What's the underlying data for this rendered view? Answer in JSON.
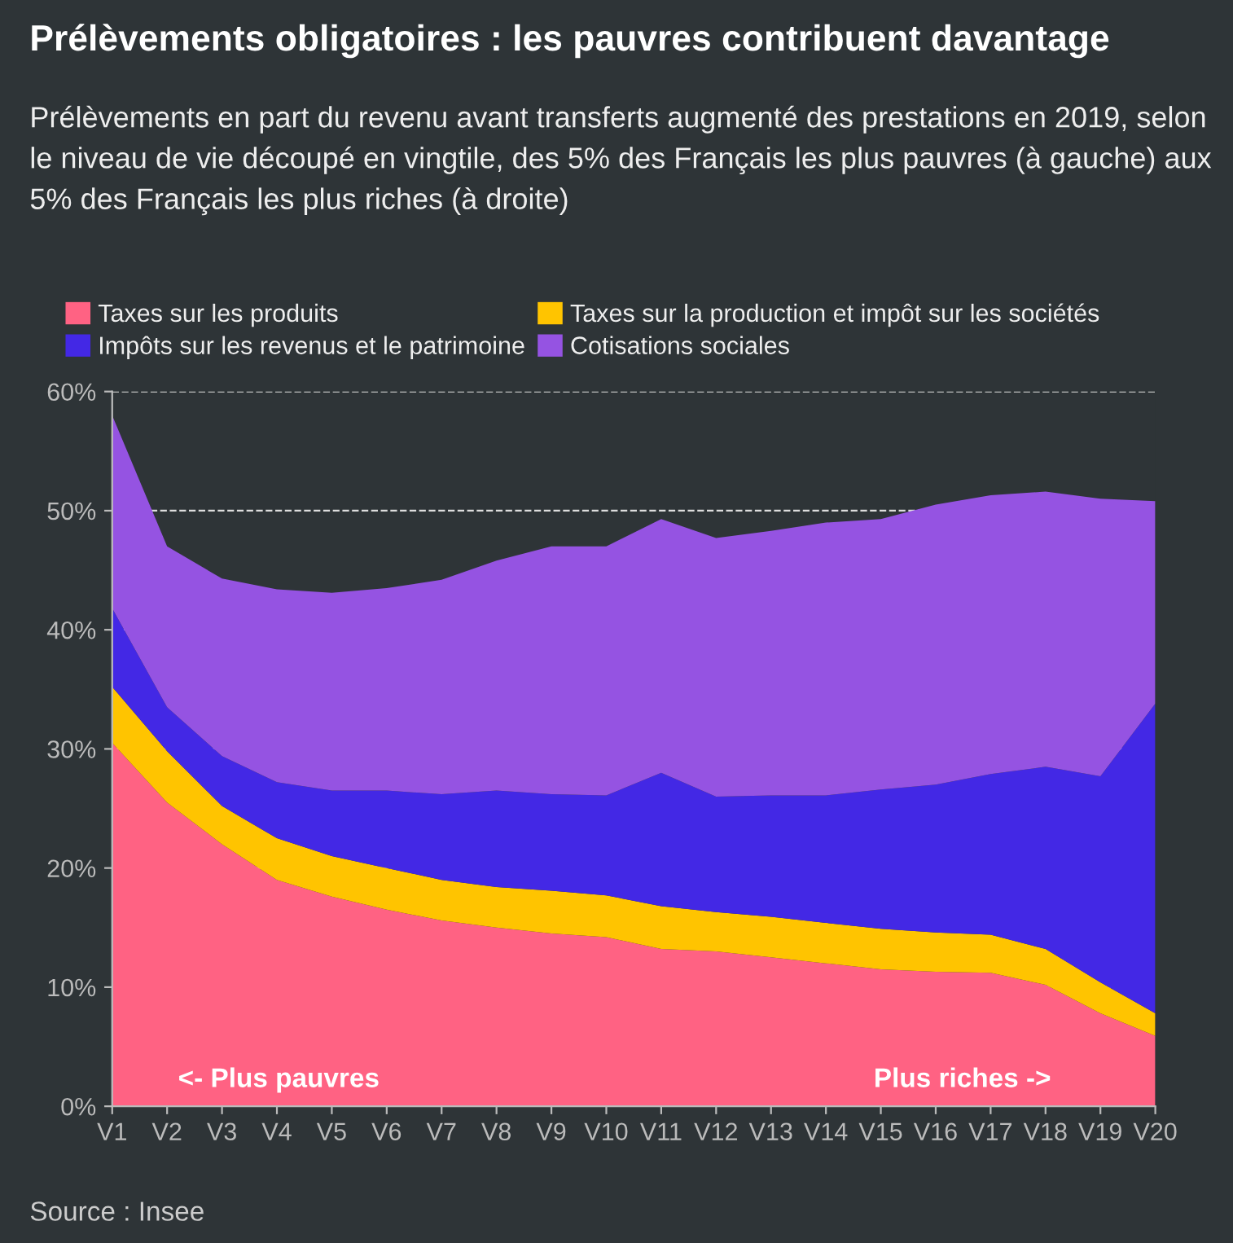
{
  "chart_data": {
    "type": "area",
    "stacked": true,
    "title": "Prélèvements obligatoires : les pauvres contribuent davantage",
    "subtitle": "Prélèvements en part du revenu avant transferts augmenté des prestations en 2019, selon le niveau de vie découpé en vingtile, des 5% des Français les plus pauvres (à gauche) aux 5% des Français les plus riches (à droite)",
    "categories": [
      "V1",
      "V2",
      "V3",
      "V4",
      "V5",
      "V6",
      "V7",
      "V8",
      "V9",
      "V10",
      "V11",
      "V12",
      "V13",
      "V14",
      "V15",
      "V16",
      "V17",
      "V18",
      "V19",
      "V20"
    ],
    "series": [
      {
        "name": "Taxes sur les produits",
        "color": "#ff6283",
        "values": [
          30.5,
          25.5,
          22,
          19,
          17.6,
          16.5,
          15.6,
          15,
          14.5,
          14.2,
          13.2,
          13,
          12.5,
          12,
          11.5,
          11.3,
          11.2,
          10.2,
          7.8,
          5.9
        ]
      },
      {
        "name": "Taxes sur la production et impôt sur les sociétés",
        "color": "#ffc400",
        "values": [
          4.7,
          4.3,
          3.2,
          3.5,
          3.4,
          3.5,
          3.4,
          3.4,
          3.6,
          3.5,
          3.6,
          3.3,
          3.4,
          3.4,
          3.4,
          3.3,
          3.2,
          3.0,
          2.6,
          1.9
        ]
      },
      {
        "name": "Impôts sur les revenus et le patrimoine",
        "color": "#4328e5",
        "values": [
          6.6,
          3.7,
          4.2,
          4.7,
          5.5,
          6.5,
          7.2,
          8.1,
          8.1,
          8.4,
          11.2,
          9.7,
          10.2,
          10.7,
          11.7,
          12.4,
          13.5,
          15.3,
          17.3,
          26.0
        ]
      },
      {
        "name": "Cotisations sociales",
        "color": "#9553e2",
        "values": [
          16.2,
          13.5,
          14.9,
          16.2,
          16.6,
          17.0,
          18.0,
          19.3,
          20.8,
          20.9,
          21.3,
          21.7,
          22.2,
          22.9,
          22.7,
          23.5,
          23.4,
          23.1,
          23.3,
          17.0
        ]
      }
    ],
    "ylim": [
      0,
      60
    ],
    "yticks": [
      {
        "value": 0,
        "label": "0%"
      },
      {
        "value": 10,
        "label": "10%"
      },
      {
        "value": 20,
        "label": "20%"
      },
      {
        "value": 30,
        "label": "30%"
      },
      {
        "value": 40,
        "label": "40%"
      },
      {
        "value": 50,
        "label": "50%"
      },
      {
        "value": 60,
        "label": "60%"
      }
    ],
    "grid": "y",
    "line_style": "dashed",
    "legend": "top left",
    "annotations": [
      "<- Plus pauvres",
      "Plus riches ->",
      "Source : Insee"
    ]
  }
}
